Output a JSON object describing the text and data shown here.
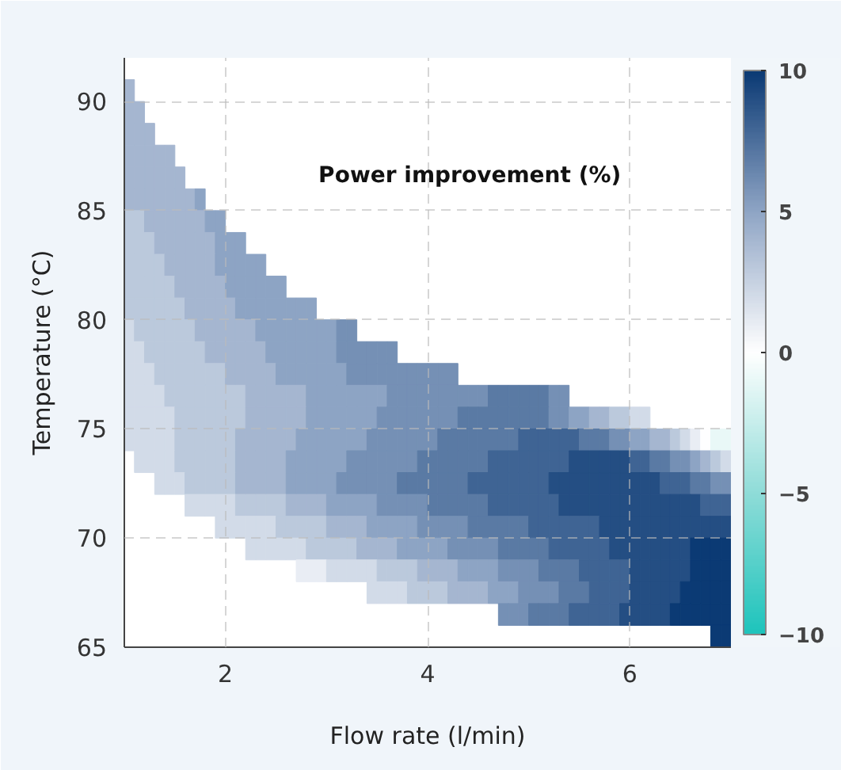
{
  "chart_data": {
    "type": "heatmap",
    "clabel": "Power improvement (%)",
    "xlabel": "Flow rate (l/min)",
    "ylabel": "Temperature (°C)",
    "xlim": [
      1,
      7
    ],
    "ylim": [
      65,
      92
    ],
    "xticks": [
      2,
      4,
      6
    ],
    "yticks": [
      65,
      70,
      75,
      80,
      85,
      90
    ],
    "clim": [
      -10,
      10
    ],
    "cticks": [
      -10,
      -5,
      0,
      5,
      10
    ],
    "grid": true,
    "x": [
      1.05,
      1.15,
      1.25,
      1.35,
      1.45,
      1.55,
      1.65,
      1.75,
      1.85,
      1.95,
      2.05,
      2.15,
      2.25,
      2.35,
      2.45,
      2.55,
      2.65,
      2.75,
      2.85,
      2.95,
      3.05,
      3.15,
      3.25,
      3.35,
      3.45,
      3.55,
      3.65,
      3.75,
      3.85,
      3.95,
      4.05,
      4.15,
      4.25,
      4.35,
      4.45,
      4.55,
      4.65,
      4.75,
      4.85,
      4.95,
      5.05,
      5.15,
      5.25,
      5.35,
      5.45,
      5.55,
      5.65,
      5.75,
      5.85,
      5.95,
      6.05,
      6.15,
      6.25,
      6.35,
      6.45,
      6.55,
      6.65,
      6.75,
      6.85,
      6.95
    ],
    "y": [
      90.5,
      89.5,
      88.5,
      87.5,
      86.5,
      85.5,
      84.5,
      83.5,
      82.5,
      81.5,
      80.5,
      79.5,
      78.5,
      77.5,
      76.5,
      75.5,
      74.5,
      73.5,
      72.5,
      71.5,
      70.5,
      69.5,
      68.5,
      67.5,
      66.5,
      65.5
    ],
    "cells": [
      [
        4,
        null,
        null,
        null,
        null,
        null,
        null,
        null,
        null,
        null,
        null,
        null,
        null,
        null,
        null,
        null,
        null,
        null,
        null,
        null,
        null,
        null,
        null,
        null,
        null,
        null,
        null,
        null,
        null,
        null,
        null,
        null,
        null,
        null,
        null,
        null,
        null,
        null,
        null,
        null,
        null,
        null,
        null,
        null,
        null,
        null,
        null,
        null,
        null,
        null,
        null,
        null,
        null,
        null,
        null,
        null,
        null,
        null,
        null,
        null
      ],
      [
        4,
        4,
        null,
        null,
        null,
        null,
        null,
        null,
        null,
        null,
        null,
        null,
        null,
        null,
        null,
        null,
        null,
        null,
        null,
        null,
        null,
        null,
        null,
        null,
        null,
        null,
        null,
        null,
        null,
        null,
        null,
        null,
        null,
        null,
        null,
        null,
        null,
        null,
        null,
        null,
        null,
        null,
        null,
        null,
        null,
        null,
        null,
        null,
        null,
        null,
        null,
        null,
        null,
        null,
        null,
        null,
        null,
        null,
        null,
        null
      ],
      [
        4,
        4,
        4,
        null,
        null,
        null,
        null,
        null,
        null,
        null,
        null,
        null,
        null,
        null,
        null,
        null,
        null,
        null,
        null,
        null,
        null,
        null,
        null,
        null,
        null,
        null,
        null,
        null,
        null,
        null,
        null,
        null,
        null,
        null,
        null,
        null,
        null,
        null,
        null,
        null,
        null,
        null,
        null,
        null,
        null,
        null,
        null,
        null,
        null,
        null,
        null,
        null,
        null,
        null,
        null,
        null,
        null,
        null,
        null,
        null
      ],
      [
        4,
        4,
        4,
        4,
        4,
        null,
        null,
        null,
        null,
        null,
        null,
        null,
        null,
        null,
        null,
        null,
        null,
        null,
        null,
        null,
        null,
        null,
        null,
        null,
        null,
        null,
        null,
        null,
        null,
        null,
        null,
        null,
        null,
        null,
        null,
        null,
        null,
        null,
        null,
        null,
        null,
        null,
        null,
        null,
        null,
        null,
        null,
        null,
        null,
        null,
        null,
        null,
        null,
        null,
        null,
        null,
        null,
        null,
        null,
        null
      ],
      [
        4,
        4,
        4,
        4,
        4,
        4,
        null,
        null,
        null,
        null,
        null,
        null,
        null,
        null,
        null,
        null,
        null,
        null,
        null,
        null,
        null,
        null,
        null,
        null,
        null,
        null,
        null,
        null,
        null,
        null,
        null,
        null,
        null,
        null,
        null,
        null,
        null,
        null,
        null,
        null,
        null,
        null,
        null,
        null,
        null,
        null,
        null,
        null,
        null,
        null,
        null,
        null,
        null,
        null,
        null,
        null,
        null,
        null,
        null,
        null
      ],
      [
        4,
        4,
        4,
        4,
        4,
        4,
        4,
        5,
        null,
        null,
        null,
        null,
        null,
        null,
        null,
        null,
        null,
        null,
        null,
        null,
        null,
        null,
        null,
        null,
        null,
        null,
        null,
        null,
        null,
        null,
        null,
        null,
        null,
        null,
        null,
        null,
        null,
        null,
        null,
        null,
        null,
        null,
        null,
        null,
        null,
        null,
        null,
        null,
        null,
        null,
        null,
        null,
        null,
        null,
        null,
        null,
        null,
        null,
        null,
        null
      ],
      [
        3,
        3,
        4,
        4,
        4,
        4,
        4,
        4,
        5,
        5,
        null,
        null,
        null,
        null,
        null,
        null,
        null,
        null,
        null,
        null,
        null,
        null,
        null,
        null,
        null,
        null,
        null,
        null,
        null,
        null,
        null,
        null,
        null,
        null,
        null,
        null,
        null,
        null,
        null,
        null,
        null,
        null,
        null,
        null,
        null,
        null,
        null,
        null,
        null,
        null,
        null,
        null,
        null,
        null,
        null,
        null,
        null,
        null,
        null,
        null
      ],
      [
        3,
        3,
        3,
        4,
        4,
        4,
        4,
        4,
        4,
        5,
        5,
        5,
        null,
        null,
        null,
        null,
        null,
        null,
        null,
        null,
        null,
        null,
        null,
        null,
        null,
        null,
        null,
        null,
        null,
        null,
        null,
        null,
        null,
        null,
        null,
        null,
        null,
        null,
        null,
        null,
        null,
        null,
        null,
        null,
        null,
        null,
        null,
        null,
        null,
        null,
        null,
        null,
        null,
        null,
        null,
        null,
        null,
        null,
        null,
        null
      ],
      [
        3,
        3,
        3,
        3,
        4,
        4,
        4,
        4,
        4,
        5,
        5,
        5,
        5,
        5,
        null,
        null,
        null,
        null,
        null,
        null,
        null,
        null,
        null,
        null,
        null,
        null,
        null,
        null,
        null,
        null,
        null,
        null,
        null,
        null,
        null,
        null,
        null,
        null,
        null,
        null,
        null,
        null,
        null,
        null,
        null,
        null,
        null,
        null,
        null,
        null,
        null,
        null,
        null,
        null,
        null,
        null,
        null,
        null,
        null,
        null
      ],
      [
        3,
        3,
        3,
        3,
        3,
        4,
        4,
        4,
        4,
        4,
        5,
        5,
        5,
        5,
        5,
        5,
        null,
        null,
        null,
        null,
        null,
        null,
        null,
        null,
        null,
        null,
        null,
        null,
        null,
        null,
        null,
        null,
        null,
        null,
        null,
        null,
        null,
        null,
        null,
        null,
        null,
        null,
        null,
        null,
        null,
        null,
        null,
        null,
        null,
        null,
        null,
        null,
        null,
        null,
        null,
        null,
        null,
        null,
        null,
        null
      ],
      [
        3,
        3,
        3,
        3,
        3,
        3,
        4,
        4,
        4,
        4,
        4,
        5,
        5,
        5,
        5,
        5,
        5,
        5,
        5,
        null,
        null,
        null,
        null,
        null,
        null,
        null,
        null,
        null,
        null,
        null,
        null,
        null,
        null,
        null,
        null,
        null,
        null,
        null,
        null,
        null,
        null,
        null,
        null,
        null,
        null,
        null,
        null,
        null,
        null,
        null,
        null,
        null,
        null,
        null,
        null,
        null,
        null,
        null,
        null,
        null
      ],
      [
        2,
        3,
        3,
        3,
        3,
        3,
        3,
        4,
        4,
        4,
        4,
        4,
        4,
        5,
        5,
        5,
        5,
        5,
        5,
        5,
        5,
        6,
        6,
        null,
        null,
        null,
        null,
        null,
        null,
        null,
        null,
        null,
        null,
        null,
        null,
        null,
        null,
        null,
        null,
        null,
        null,
        null,
        null,
        null,
        null,
        null,
        null,
        null,
        null,
        null,
        null,
        null,
        null,
        null,
        null,
        null,
        null,
        null,
        null,
        null
      ],
      [
        2,
        2,
        3,
        3,
        3,
        3,
        3,
        3,
        4,
        4,
        4,
        4,
        4,
        4,
        5,
        5,
        5,
        5,
        5,
        5,
        5,
        6,
        6,
        6,
        6,
        6,
        6,
        null,
        null,
        null,
        null,
        null,
        null,
        null,
        null,
        null,
        null,
        null,
        null,
        null,
        null,
        null,
        null,
        null,
        null,
        null,
        null,
        null,
        null,
        null,
        null,
        null,
        null,
        null,
        null,
        null,
        null,
        null,
        null,
        null
      ],
      [
        2,
        2,
        2,
        3,
        3,
        3,
        3,
        3,
        3,
        3,
        4,
        4,
        4,
        4,
        4,
        5,
        5,
        5,
        5,
        5,
        5,
        5,
        6,
        6,
        6,
        6,
        6,
        6,
        6,
        6,
        6,
        6,
        6,
        null,
        null,
        null,
        null,
        null,
        null,
        null,
        null,
        null,
        null,
        null,
        null,
        null,
        null,
        null,
        null,
        null,
        null,
        null,
        null,
        null,
        null,
        null,
        null,
        null,
        null,
        null
      ],
      [
        2,
        2,
        2,
        2,
        3,
        3,
        3,
        3,
        3,
        3,
        3,
        3,
        4,
        4,
        4,
        4,
        4,
        4,
        5,
        5,
        5,
        5,
        5,
        5,
        5,
        5,
        6,
        6,
        6,
        6,
        6,
        6,
        6,
        6,
        6,
        6,
        7,
        7,
        7,
        7,
        7,
        7,
        6,
        6,
        null,
        null,
        null,
        null,
        null,
        null,
        null,
        null,
        null,
        null,
        null,
        null,
        null,
        null,
        null,
        null
      ],
      [
        2,
        2,
        2,
        2,
        2,
        3,
        3,
        3,
        3,
        3,
        3,
        3,
        4,
        4,
        4,
        4,
        4,
        4,
        5,
        5,
        5,
        5,
        5,
        5,
        5,
        6,
        6,
        6,
        6,
        6,
        6,
        6,
        6,
        7,
        7,
        7,
        7,
        7,
        7,
        7,
        7,
        7,
        6,
        6,
        5,
        5,
        4,
        4,
        3,
        3,
        2,
        2,
        null,
        null,
        null,
        null,
        null,
        null,
        null,
        null
      ],
      [
        2,
        2,
        2,
        2,
        2,
        3,
        3,
        3,
        3,
        3,
        3,
        4,
        4,
        4,
        4,
        4,
        4,
        5,
        5,
        5,
        5,
        5,
        5,
        5,
        6,
        6,
        6,
        6,
        6,
        6,
        6,
        7,
        7,
        7,
        7,
        7,
        7,
        7,
        7,
        8,
        8,
        8,
        8,
        8,
        8,
        7,
        7,
        7,
        6,
        6,
        5,
        5,
        4,
        4,
        3,
        2,
        1,
        0,
        -1,
        -1
      ],
      [
        null,
        2,
        2,
        2,
        2,
        3,
        3,
        3,
        3,
        3,
        3,
        4,
        4,
        4,
        4,
        4,
        5,
        5,
        5,
        5,
        5,
        5,
        6,
        6,
        6,
        6,
        6,
        6,
        6,
        7,
        7,
        7,
        7,
        7,
        7,
        7,
        8,
        8,
        8,
        8,
        8,
        8,
        8,
        8,
        9,
        9,
        9,
        9,
        9,
        9,
        8,
        8,
        7,
        7,
        6,
        6,
        5,
        4,
        3,
        2
      ],
      [
        null,
        null,
        null,
        2,
        2,
        2,
        3,
        3,
        3,
        3,
        3,
        4,
        4,
        4,
        4,
        4,
        5,
        5,
        5,
        5,
        5,
        6,
        6,
        6,
        6,
        6,
        6,
        7,
        7,
        7,
        7,
        7,
        7,
        7,
        8,
        8,
        8,
        8,
        8,
        8,
        8,
        8,
        9,
        9,
        9,
        9,
        9,
        9,
        9,
        9,
        9,
        9,
        9,
        8,
        8,
        8,
        7,
        7,
        6,
        6
      ],
      [
        null,
        null,
        null,
        null,
        null,
        null,
        2,
        2,
        2,
        2,
        2,
        3,
        3,
        3,
        3,
        3,
        4,
        4,
        4,
        4,
        5,
        5,
        5,
        5,
        5,
        6,
        6,
        6,
        6,
        6,
        7,
        7,
        7,
        7,
        7,
        7,
        8,
        8,
        8,
        8,
        8,
        8,
        8,
        9,
        9,
        9,
        9,
        9,
        9,
        9,
        9,
        9,
        9,
        9,
        9,
        9,
        9,
        8,
        8,
        8
      ],
      [
        null,
        null,
        null,
        null,
        null,
        null,
        null,
        null,
        null,
        2,
        2,
        2,
        2,
        2,
        2,
        3,
        3,
        3,
        3,
        3,
        4,
        4,
        4,
        4,
        5,
        5,
        5,
        5,
        5,
        6,
        6,
        6,
        6,
        6,
        7,
        7,
        7,
        7,
        7,
        7,
        8,
        8,
        8,
        8,
        8,
        8,
        8,
        9,
        9,
        9,
        9,
        9,
        9,
        9,
        9,
        9,
        9,
        9,
        9,
        9
      ],
      [
        null,
        null,
        null,
        null,
        null,
        null,
        null,
        null,
        null,
        null,
        null,
        null,
        2,
        2,
        2,
        2,
        2,
        2,
        3,
        3,
        3,
        3,
        3,
        4,
        4,
        4,
        4,
        5,
        5,
        5,
        5,
        5,
        6,
        6,
        6,
        6,
        6,
        7,
        7,
        7,
        7,
        7,
        8,
        8,
        8,
        8,
        8,
        8,
        9,
        9,
        9,
        9,
        9,
        9,
        9,
        9,
        10,
        10,
        10,
        10
      ],
      [
        null,
        null,
        null,
        null,
        null,
        null,
        null,
        null,
        null,
        null,
        null,
        null,
        null,
        null,
        null,
        null,
        null,
        1,
        1,
        1,
        2,
        2,
        2,
        2,
        2,
        3,
        3,
        3,
        3,
        4,
        4,
        4,
        4,
        5,
        5,
        5,
        5,
        6,
        6,
        6,
        6,
        7,
        7,
        7,
        7,
        8,
        8,
        8,
        8,
        8,
        9,
        9,
        9,
        9,
        9,
        9,
        10,
        10,
        10,
        10
      ],
      [
        null,
        null,
        null,
        null,
        null,
        null,
        null,
        null,
        null,
        null,
        null,
        null,
        null,
        null,
        null,
        null,
        null,
        null,
        null,
        null,
        null,
        null,
        null,
        null,
        2,
        2,
        2,
        2,
        3,
        3,
        3,
        3,
        4,
        4,
        4,
        4,
        5,
        5,
        5,
        6,
        6,
        6,
        6,
        7,
        7,
        7,
        8,
        8,
        8,
        8,
        9,
        9,
        9,
        9,
        9,
        10,
        10,
        10,
        10,
        10
      ],
      [
        null,
        null,
        null,
        null,
        null,
        null,
        null,
        null,
        null,
        null,
        null,
        null,
        null,
        null,
        null,
        null,
        null,
        null,
        null,
        null,
        null,
        null,
        null,
        null,
        null,
        null,
        null,
        null,
        null,
        null,
        null,
        null,
        null,
        null,
        null,
        null,
        null,
        6,
        6,
        6,
        7,
        7,
        7,
        7,
        8,
        8,
        8,
        8,
        8,
        9,
        9,
        9,
        9,
        9,
        10,
        10,
        10,
        10,
        10,
        10
      ],
      [
        null,
        null,
        null,
        null,
        null,
        null,
        null,
        null,
        null,
        null,
        null,
        null,
        null,
        null,
        null,
        null,
        null,
        null,
        null,
        null,
        null,
        null,
        null,
        null,
        null,
        null,
        null,
        null,
        null,
        null,
        null,
        null,
        null,
        null,
        null,
        null,
        null,
        null,
        null,
        null,
        null,
        null,
        null,
        null,
        null,
        null,
        null,
        null,
        null,
        null,
        null,
        null,
        null,
        null,
        null,
        null,
        null,
        null,
        10,
        10
      ]
    ]
  }
}
